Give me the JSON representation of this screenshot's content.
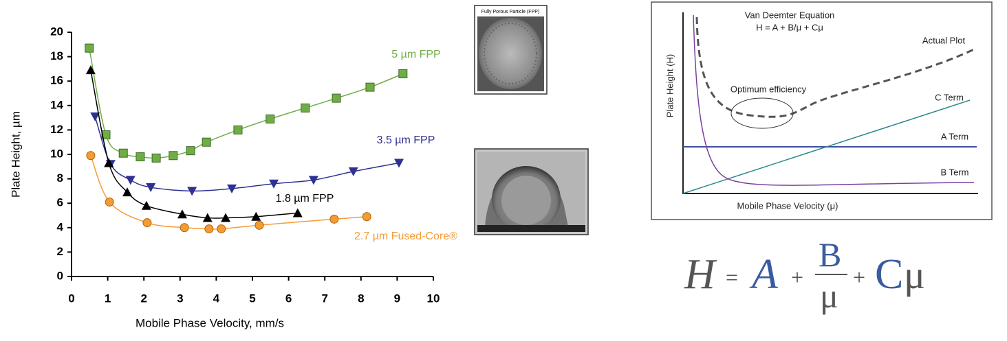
{
  "chart_data": {
    "type": "line",
    "xlabel": "Mobile Phase Velocity, mm/s",
    "ylabel": "Plate Height, µm",
    "xlim": [
      0,
      10
    ],
    "ylim": [
      0,
      20
    ],
    "xticks": [
      0,
      1,
      2,
      3,
      4,
      5,
      6,
      7,
      8,
      9,
      10
    ],
    "yticks": [
      0,
      2,
      4,
      6,
      8,
      10,
      12,
      14,
      16,
      18,
      20
    ],
    "series": [
      {
        "name": "5 µm FPP",
        "color": "#70ad47",
        "marker": "square",
        "x": [
          0.49,
          0.95,
          1.43,
          1.9,
          2.34,
          2.81,
          3.29,
          3.73,
          4.6,
          5.49,
          6.46,
          7.32,
          8.25,
          9.16
        ],
        "values": [
          18.7,
          11.6,
          10.1,
          9.8,
          9.7,
          9.9,
          10.3,
          11.0,
          12.0,
          12.9,
          13.8,
          14.6,
          15.5,
          16.6
        ]
      },
      {
        "name": "3.5 µm FPP",
        "color": "#2e3192",
        "marker": "triangle-down",
        "x": [
          0.65,
          1.08,
          1.63,
          2.19,
          3.33,
          4.43,
          5.59,
          6.69,
          7.79,
          9.05
        ],
        "values": [
          13.1,
          9.2,
          7.9,
          7.3,
          7.0,
          7.2,
          7.6,
          7.9,
          8.6,
          9.3
        ]
      },
      {
        "name": "1.8 µm FPP",
        "color": "#000000",
        "marker": "triangle-up",
        "x": [
          0.53,
          1.03,
          1.54,
          2.07,
          3.06,
          3.76,
          4.26,
          5.1,
          6.25
        ],
        "values": [
          16.9,
          9.3,
          6.9,
          5.8,
          5.1,
          4.8,
          4.8,
          4.9,
          5.2
        ]
      },
      {
        "name": "2.7 µm Fused-Core®",
        "color": "#f39c35",
        "marker": "circle",
        "x": [
          0.53,
          1.05,
          2.09,
          3.12,
          3.8,
          4.14,
          5.19,
          7.26,
          8.16
        ],
        "values": [
          9.9,
          6.1,
          4.4,
          4.0,
          3.9,
          3.9,
          4.2,
          4.7,
          4.9
        ]
      }
    ]
  },
  "sem_image": {
    "label": "Fully Porous Particle (FPP)"
  },
  "van_deemter": {
    "title": "Van Deemter Equation",
    "equation": "H = A + B/μ + Cμ",
    "actual_plot": "Actual Plot",
    "optimum": "Optimum efficiency",
    "c_term": "C Term",
    "a_term": "A Term",
    "b_term": "B Term",
    "ylabel": "Plate Height (H)",
    "xlabel": "Mobile Phase Velocity (μ)"
  },
  "equation": {
    "h": "H",
    "equals": "=",
    "a": "A",
    "plus1": "+",
    "b": "B",
    "mu1": "μ",
    "plus2": "+",
    "c": "C",
    "mu2": "μ"
  }
}
